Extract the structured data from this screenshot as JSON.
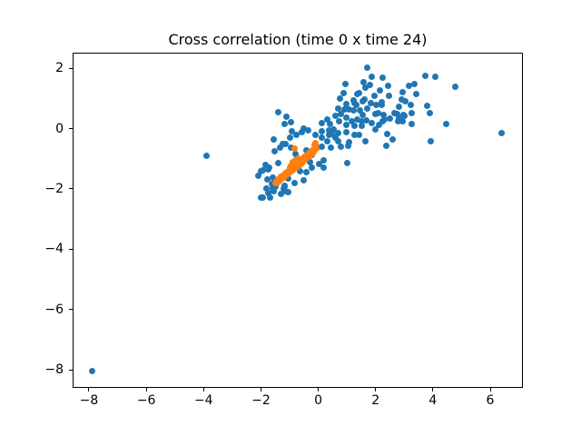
{
  "chart_data": {
    "type": "scatter",
    "title": "Cross correlation (time 0 x time 24)",
    "xlabel": "",
    "ylabel": "",
    "xlim": [
      -8.57,
      7.14
    ],
    "ylim": [
      -8.6,
      2.52
    ],
    "grid": false,
    "legend": null,
    "background": "#ffffff",
    "x_ticks": [
      -8,
      -6,
      -4,
      -2,
      0,
      2,
      4,
      6
    ],
    "x_tick_labels": [
      "−8",
      "−6",
      "−4",
      "−2",
      "0",
      "2",
      "4",
      "6"
    ],
    "y_ticks": [
      2,
      0,
      -2,
      -4,
      -6,
      -8
    ],
    "y_tick_labels": [
      "2",
      "0",
      "−2",
      "−4",
      "−6",
      "−8"
    ],
    "series": [
      {
        "name": "blue",
        "color": "#1f77b4",
        "marker": "circle",
        "points": [
          [
            -7.9,
            -8.05
          ],
          [
            -3.9,
            -0.9
          ],
          [
            6.4,
            -0.15
          ],
          [
            -2.0,
            -1.4
          ],
          [
            -2.0,
            -2.3
          ],
          [
            1.0,
            -1.15
          ],
          [
            -1.4,
            0.55
          ],
          [
            -1.1,
            0.4
          ],
          [
            -0.95,
            0.2
          ],
          [
            -1.19,
            0.16
          ],
          [
            -0.5,
            0.0
          ],
          [
            -0.91,
            -0.08
          ],
          [
            -2.08,
            -1.55
          ],
          [
            -1.95,
            -2.28
          ],
          [
            -1.92,
            -1.37
          ],
          [
            -1.83,
            -1.19
          ],
          [
            -1.82,
            -1.98
          ],
          [
            -1.79,
            -1.67
          ],
          [
            -1.76,
            -2.13
          ],
          [
            -1.76,
            -1.36
          ],
          [
            -1.7,
            -1.28
          ],
          [
            -1.67,
            -2.28
          ],
          [
            -1.63,
            -1.82
          ],
          [
            -1.6,
            -1.98
          ],
          [
            -1.6,
            -1.61
          ],
          [
            -1.54,
            -2.07
          ],
          [
            -1.51,
            -1.79
          ],
          [
            -1.48,
            -1.91
          ],
          [
            -1.41,
            -1.13
          ],
          [
            -1.29,
            -2.16
          ],
          [
            -1.22,
            -1.98
          ],
          [
            -1.19,
            -1.88
          ],
          [
            -1.16,
            -1.91
          ],
          [
            -1.13,
            -2.07
          ],
          [
            -1.06,
            -2.1
          ],
          [
            -1.06,
            -1.64
          ],
          [
            -0.84,
            -1.79
          ],
          [
            -0.65,
            -1.4
          ],
          [
            -0.5,
            -1.71
          ],
          [
            -0.41,
            -1.44
          ],
          [
            -0.3,
            -1.11
          ],
          [
            -0.21,
            -1.28
          ],
          [
            0.04,
            -1.16
          ],
          [
            0.18,
            -1.04
          ],
          [
            0.2,
            -1.28
          ],
          [
            -1.54,
            -0.35
          ],
          [
            -1.51,
            -0.74
          ],
          [
            -1.32,
            -0.62
          ],
          [
            -1.25,
            -0.5
          ],
          [
            -1.13,
            -0.5
          ],
          [
            -1.0,
            -0.29
          ],
          [
            -0.94,
            -0.62
          ],
          [
            -0.81,
            -0.83
          ],
          [
            -0.75,
            -0.2
          ],
          [
            -0.56,
            -0.11
          ],
          [
            -0.4,
            -0.71
          ],
          [
            -0.34,
            -0.05
          ],
          [
            -0.23,
            -0.86
          ],
          [
            -0.11,
            -0.2
          ],
          [
            -0.02,
            -0.62
          ],
          [
            0.14,
            -0.61
          ],
          [
            0.11,
            -0.29
          ],
          [
            0.12,
            -0.08
          ],
          [
            0.33,
            -0.41
          ],
          [
            0.39,
            -0.2
          ],
          [
            0.43,
            -0.64
          ],
          [
            0.46,
            -0.17
          ],
          [
            0.61,
            -0.29
          ],
          [
            0.8,
            -0.59
          ],
          [
            1.03,
            -0.56
          ],
          [
            1.06,
            -0.44
          ],
          [
            0.11,
            0.19
          ],
          [
            0.3,
            0.31
          ],
          [
            0.37,
            -0.05
          ],
          [
            0.42,
            0.16
          ],
          [
            0.55,
            -0.02
          ],
          [
            0.61,
            0.43
          ],
          [
            0.71,
            0.67
          ],
          [
            0.72,
            0.25
          ],
          [
            0.71,
            -0.14
          ],
          [
            0.71,
            -0.41
          ],
          [
            0.77,
            1.01
          ],
          [
            0.8,
            0.49
          ],
          [
            0.9,
            1.19
          ],
          [
            0.92,
            0.64
          ],
          [
            0.96,
            1.49
          ],
          [
            0.99,
            0.83
          ],
          [
            0.99,
            0.37
          ],
          [
            0.99,
            0.13
          ],
          [
            0.99,
            -0.11
          ],
          [
            1.09,
            0.64
          ],
          [
            1.18,
            0.25
          ],
          [
            1.22,
            0.95
          ],
          [
            1.22,
            0.61
          ],
          [
            1.25,
            0.1
          ],
          [
            1.25,
            -0.2
          ],
          [
            1.28,
            0.86
          ],
          [
            1.34,
            0.8
          ],
          [
            1.37,
            1.16
          ],
          [
            1.37,
            0.31
          ],
          [
            1.41,
            1.19
          ],
          [
            1.41,
            -0.2
          ],
          [
            1.45,
            0.6
          ],
          [
            1.53,
            0.25
          ],
          [
            1.53,
            0.1
          ],
          [
            1.56,
            0.92
          ],
          [
            1.56,
            0.46
          ],
          [
            1.6,
            0.98
          ],
          [
            1.66,
            -0.41
          ],
          [
            1.69,
            0.28
          ],
          [
            1.72,
            0.67
          ],
          [
            1.85,
            0.86
          ],
          [
            1.88,
            0.19
          ],
          [
            1.95,
            1.1
          ],
          [
            1.98,
            -0.02
          ],
          [
            1.98,
            0.49
          ],
          [
            2.04,
            0.8
          ],
          [
            2.1,
            0.52
          ],
          [
            2.13,
            0.13
          ],
          [
            2.15,
            1.28
          ],
          [
            2.2,
            0.8
          ],
          [
            2.23,
            0.89
          ],
          [
            2.26,
            0.25
          ],
          [
            2.29,
            0.46
          ],
          [
            2.32,
            0.31
          ],
          [
            2.36,
            -0.56
          ],
          [
            2.42,
            -0.17
          ],
          [
            2.48,
            1.1
          ],
          [
            2.51,
            0.34
          ],
          [
            2.61,
            -0.35
          ],
          [
            2.67,
            0.52
          ],
          [
            2.74,
            0.49
          ],
          [
            2.8,
            0.25
          ],
          [
            2.83,
            0.74
          ],
          [
            2.83,
            0.34
          ],
          [
            2.9,
            0.98
          ],
          [
            2.93,
            0.25
          ],
          [
            2.99,
            0.46
          ],
          [
            3.02,
            0.43
          ],
          [
            3.05,
            0.92
          ],
          [
            3.24,
            0.8
          ],
          [
            3.27,
            0.52
          ],
          [
            3.27,
            0.16
          ],
          [
            1.7,
            2.03
          ],
          [
            1.88,
            1.72
          ],
          [
            2.25,
            1.7
          ],
          [
            1.58,
            1.53
          ],
          [
            1.8,
            1.44
          ],
          [
            1.63,
            1.37
          ],
          [
            2.43,
            1.41
          ],
          [
            2.93,
            1.22
          ],
          [
            3.18,
            1.43
          ],
          [
            3.37,
            1.49
          ],
          [
            3.42,
            1.16
          ],
          [
            3.75,
            1.76
          ],
          [
            3.8,
            0.77
          ],
          [
            3.89,
            0.52
          ],
          [
            3.91,
            -0.41
          ],
          [
            4.07,
            1.72
          ],
          [
            4.47,
            0.14
          ],
          [
            4.79,
            1.4
          ]
        ]
      },
      {
        "name": "orange",
        "color": "#ff7f0e",
        "marker": "circle",
        "points": [
          [
            -1.5,
            -1.8
          ],
          [
            -1.47,
            -1.75
          ],
          [
            -1.44,
            -1.8
          ],
          [
            -1.41,
            -1.7
          ],
          [
            -1.38,
            -1.75
          ],
          [
            -1.35,
            -1.65
          ],
          [
            -1.33,
            -1.71
          ],
          [
            -1.3,
            -1.6
          ],
          [
            -1.27,
            -1.66
          ],
          [
            -1.24,
            -1.56
          ],
          [
            -1.21,
            -1.62
          ],
          [
            -1.19,
            -1.52
          ],
          [
            -1.16,
            -1.58
          ],
          [
            -1.13,
            -1.47
          ],
          [
            -1.1,
            -1.53
          ],
          [
            -1.08,
            -1.43
          ],
          [
            -1.05,
            -1.49
          ],
          [
            -1.02,
            -1.38
          ],
          [
            -0.99,
            -1.45
          ],
          [
            -0.97,
            -1.34
          ],
          [
            -0.94,
            -1.41
          ],
          [
            -0.91,
            -1.29
          ],
          [
            -0.88,
            -1.37
          ],
          [
            -0.86,
            -1.25
          ],
          [
            -0.83,
            -1.33
          ],
          [
            -0.8,
            -1.2
          ],
          [
            -0.77,
            -1.28
          ],
          [
            -0.75,
            -1.16
          ],
          [
            -0.72,
            -1.24
          ],
          [
            -0.69,
            -1.11
          ],
          [
            -0.66,
            -1.19
          ],
          [
            -0.64,
            -1.07
          ],
          [
            -0.61,
            -1.15
          ],
          [
            -0.58,
            -1.02
          ],
          [
            -0.55,
            -1.1
          ],
          [
            -0.53,
            -0.98
          ],
          [
            -0.5,
            -1.06
          ],
          [
            -0.47,
            -0.93
          ],
          [
            -0.44,
            -1.01
          ],
          [
            -0.42,
            -0.89
          ],
          [
            -0.39,
            -0.97
          ],
          [
            -0.36,
            -0.84
          ],
          [
            -0.33,
            -0.92
          ],
          [
            -0.31,
            -0.8
          ],
          [
            -0.28,
            -0.88
          ],
          [
            -0.25,
            -0.75
          ],
          [
            -0.22,
            -0.83
          ],
          [
            -0.2,
            -0.71
          ],
          [
            -0.17,
            -0.78
          ],
          [
            -0.14,
            -0.66
          ],
          [
            -0.12,
            -0.73
          ],
          [
            -0.1,
            -0.6
          ],
          [
            -0.08,
            -0.67
          ],
          [
            -0.12,
            -0.55
          ],
          [
            -0.1,
            -0.48
          ],
          [
            -0.95,
            -1.22
          ],
          [
            -0.88,
            -1.15
          ],
          [
            -0.82,
            -1.08
          ],
          [
            -0.9,
            -1.1
          ],
          [
            -0.85,
            -1.3
          ],
          [
            -0.78,
            -1.05
          ],
          [
            -0.98,
            -1.3
          ],
          [
            -0.7,
            -0.98
          ],
          [
            -0.68,
            -1.22
          ],
          [
            -0.6,
            -1.18
          ],
          [
            -0.84,
            -0.65
          ]
        ]
      }
    ]
  }
}
